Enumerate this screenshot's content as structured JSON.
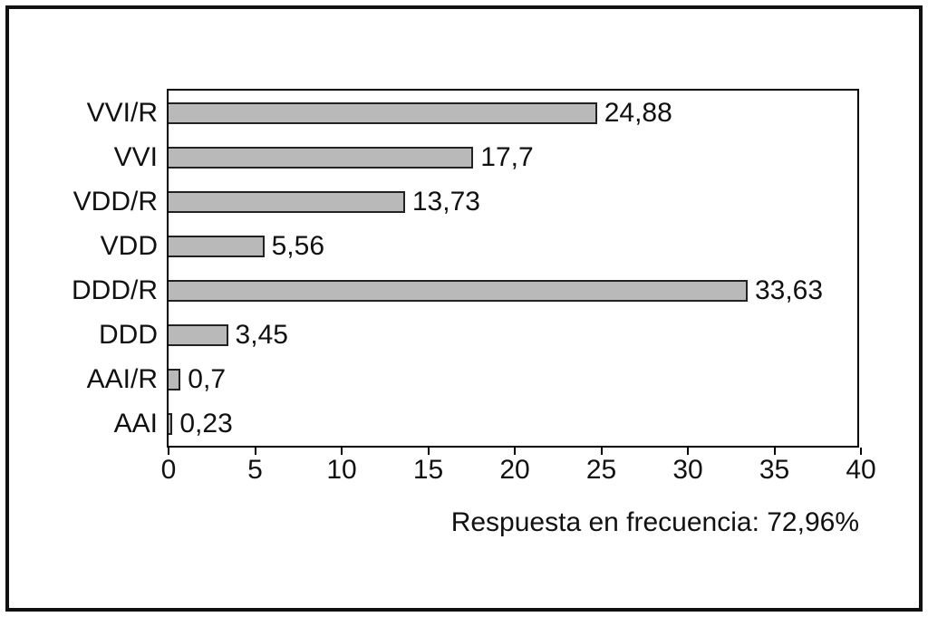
{
  "chart_data": {
    "type": "bar",
    "orientation": "horizontal",
    "title": "",
    "xlabel": "",
    "ylabel": "",
    "categories": [
      "VVI/R",
      "VVI",
      "VDD/R",
      "VDD",
      "DDD/R",
      "DDD",
      "AAI/R",
      "AAI"
    ],
    "values": [
      24.88,
      17.7,
      13.73,
      5.56,
      33.63,
      3.45,
      0.7,
      0.23
    ],
    "value_labels": [
      "24,88",
      "17,7",
      "13,73",
      "5,56",
      "33,63",
      "3,45",
      "0,7",
      "0,23"
    ],
    "xlim": [
      0,
      40
    ],
    "x_ticks": [
      0,
      5,
      10,
      15,
      20,
      25,
      30,
      35,
      40
    ],
    "x_tick_labels": [
      "0",
      "5",
      "10",
      "15",
      "20",
      "25",
      "30",
      "35",
      "40"
    ],
    "caption": "Respuesta en frecuencia: 72,96%",
    "grid": false,
    "legend": false,
    "bar_color": "#b9b9b9",
    "bar_border_color": "#222222",
    "frame_color": "#111111",
    "text_color": "#111111"
  }
}
